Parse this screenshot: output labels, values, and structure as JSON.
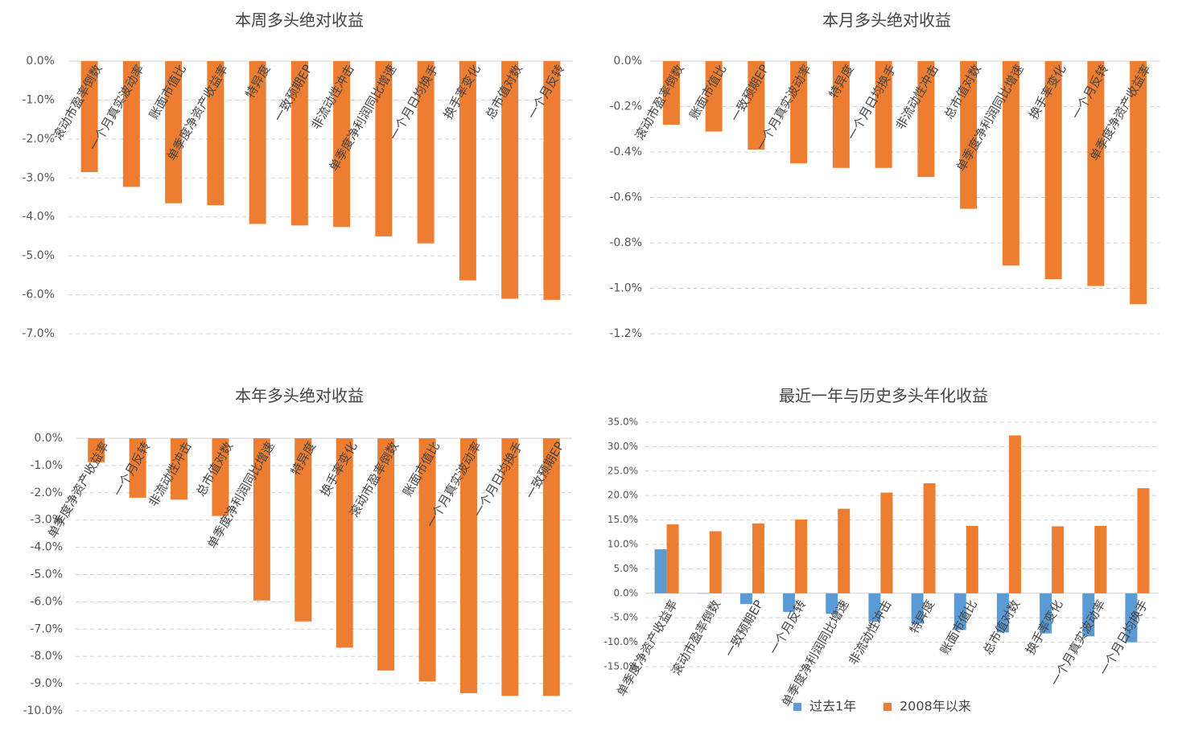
{
  "colors": {
    "orange": "#ED7D31",
    "blue": "#5B9BD5",
    "grid": "#D0D0D0"
  },
  "chart_data": [
    {
      "type": "bar",
      "title": "本周多头绝对收益",
      "ylim": [
        -7.0,
        0.0
      ],
      "yticks": [
        0.0,
        -1.0,
        -2.0,
        -3.0,
        -4.0,
        -5.0,
        -6.0,
        -7.0
      ],
      "yticklabels": [
        "0.0%",
        "-1.0%",
        "-2.0%",
        "-3.0%",
        "-4.0%",
        "-5.0%",
        "-6.0%",
        "-7.0%"
      ],
      "categories": [
        "滚动市盈率倒数",
        "一个月真实波动率",
        "账面市值比",
        "单季度净资产收益率",
        "特异度",
        "一致预期EP",
        "非流动性冲击",
        "单季度净利润同比增速",
        "一个月日均换手",
        "换手率变化",
        "总市值对数",
        "一个月反转"
      ],
      "values": [
        -2.85,
        -3.23,
        -3.65,
        -3.7,
        -4.18,
        -4.22,
        -4.26,
        -4.5,
        -4.68,
        -5.63,
        -6.1,
        -6.13
      ],
      "grid": true
    },
    {
      "type": "bar",
      "title": "本月多头绝对收益",
      "ylim": [
        -1.2,
        0.0
      ],
      "yticks": [
        0.0,
        -0.2,
        -0.4,
        -0.6,
        -0.8,
        -1.0,
        -1.2
      ],
      "yticklabels": [
        "0.0%",
        "-0.2%",
        "-0.4%",
        "-0.6%",
        "-0.8%",
        "-1.0%",
        "-1.2%"
      ],
      "categories": [
        "滚动市盈率倒数",
        "账面市值比",
        "一致预期EP",
        "一个月真实波动率",
        "特异度",
        "一个月日均换手",
        "非流动性冲击",
        "总市值对数",
        "单季度净利润同比增速",
        "换手率变化",
        "一个月反转",
        "单季度净资产收益率"
      ],
      "values": [
        -0.28,
        -0.31,
        -0.39,
        -0.45,
        -0.47,
        -0.47,
        -0.51,
        -0.65,
        -0.9,
        -0.96,
        -0.99,
        -1.07
      ],
      "grid": true
    },
    {
      "type": "bar",
      "title": "本年多头绝对收益",
      "ylim": [
        -10.0,
        0.0
      ],
      "yticks": [
        0.0,
        -1.0,
        -2.0,
        -3.0,
        -4.0,
        -5.0,
        -6.0,
        -7.0,
        -8.0,
        -9.0,
        -10.0
      ],
      "yticklabels": [
        "0.0%",
        "-1.0%",
        "-2.0%",
        "-3.0%",
        "-4.0%",
        "-5.0%",
        "-6.0%",
        "-7.0%",
        "-8.0%",
        "-9.0%",
        "-10.0%"
      ],
      "categories": [
        "单季度净资产收益率",
        "一个月反转",
        "非流动性冲击",
        "总市值对数",
        "单季度净利润同比增速",
        "特异度",
        "换手率变化",
        "滚动市盈率倒数",
        "账面市值比",
        "一个月真实波动率",
        "一个月日均换手",
        "一致预期EP"
      ],
      "values": [
        -0.88,
        -2.18,
        -2.25,
        -2.85,
        -5.95,
        -6.72,
        -7.68,
        -8.52,
        -8.92,
        -9.35,
        -9.45,
        -9.45
      ],
      "grid": true
    },
    {
      "type": "bar",
      "title": "最近一年与历史多头年化收益",
      "ylim": [
        -15.0,
        35.0
      ],
      "yticks": [
        35.0,
        30.0,
        25.0,
        20.0,
        15.0,
        10.0,
        5.0,
        0.0,
        -5.0,
        -10.0,
        -15.0
      ],
      "yticklabels": [
        "35.0%",
        "30.0%",
        "25.0%",
        "20.0%",
        "15.0%",
        "10.0%",
        "5.0%",
        "0.0%",
        "-5.0%",
        "-10.0%",
        "-15.0%"
      ],
      "categories": [
        "单季度净资产收益率",
        "滚动市盈率倒数",
        "一致预期EP",
        "一个月反转",
        "单季度净利润同比增速",
        "非流动性冲击",
        "特异度",
        "账面市值比",
        "总市值对数",
        "换手率变化",
        "一个月真实波动率",
        "一个月日均换手"
      ],
      "series": [
        {
          "name": "过去1年",
          "color": "#5B9BD5",
          "values": [
            9.0,
            0.0,
            -2.2,
            -3.8,
            -4.2,
            -5.8,
            -6.2,
            -7.5,
            -8.0,
            -8.2,
            -8.8,
            -10.0
          ]
        },
        {
          "name": "2008年以来",
          "color": "#ED7D31",
          "values": [
            14.1,
            12.7,
            14.3,
            15.1,
            17.3,
            20.6,
            22.5,
            13.8,
            32.3,
            13.7,
            13.8,
            21.5
          ]
        }
      ],
      "legend": "bottom",
      "grid": true
    }
  ]
}
